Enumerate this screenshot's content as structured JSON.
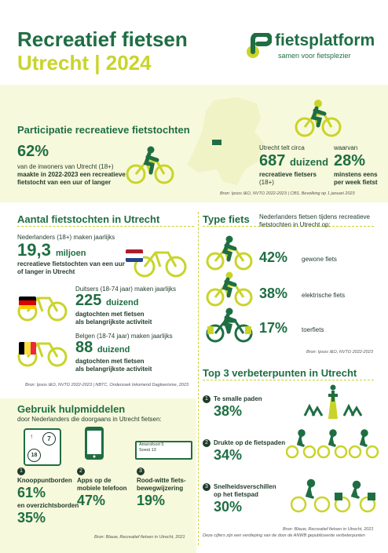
{
  "header": {
    "title_line1": "Recreatief fietsen",
    "title_line2": "Utrecht | 2024",
    "logo_name": "fietsplatform",
    "logo_tagline": "samen voor fietsplezier"
  },
  "participatie": {
    "title": "Participatie recreatieve fietstochten",
    "pct": "62%",
    "line1": "van de inwoners van Utrecht (18+)",
    "line2": "maakte in 2022-2023 een recreatieve",
    "line3": "fietstocht van een uur of langer",
    "count_intro": "Utrecht telt circa",
    "count_value": "687",
    "count_unit": "duizend",
    "count_label1": "recreatieve fietsers",
    "count_label2": "(18+)",
    "weekly_intro": "waarvan",
    "weekly_pct": "28%",
    "weekly_label1": "minstens eens",
    "weekly_label2": "per week fietst",
    "source": "Bron: Ipsos I&O, NVTO 2022-2023 | CBS, Bevolking op 1 januari 2023"
  },
  "aantal": {
    "title": "Aantal fietstochten in Utrecht",
    "nl_intro": "Nederlanders (18+) maken jaarlijks",
    "nl_value": "19,3",
    "nl_unit": "miljoen",
    "nl_label1": "recreatieve fietstochten van een uur",
    "nl_label2": "of langer in Utrecht",
    "de_intro": "Duitsers (18-74 jaar) maken jaarlijks",
    "de_value": "225",
    "de_unit": "duizend",
    "de_label1": "dagtochten met fietsen",
    "de_label2": "als belangrijkste activiteit",
    "be_intro": "Belgen (18-74 jaar) maken jaarlijks",
    "be_value": "88",
    "be_unit": "duizend",
    "be_label1": "dagtochten met fietsen",
    "be_label2": "als belangrijkste activiteit",
    "source": "Bron: Ipsos I&O, NVTO 2022-2023 | NBTC, Onderzoek Inkomend Dagtoerisme, 2023"
  },
  "type": {
    "title": "Type fiets",
    "intro1": "Nederlanders fietsen tijdens recreatieve",
    "intro2": "fietstochten in Utrecht op:",
    "items": [
      {
        "pct": "42%",
        "label": "gewone fiets"
      },
      {
        "pct": "38%",
        "label": "elektrische fiets"
      },
      {
        "pct": "17%",
        "label": "toerfiets"
      }
    ],
    "source": "Bron: Ipsos I&O, NVTO 2022-2023"
  },
  "hulp": {
    "title": "Gebruik hulpmiddelen",
    "intro": "door Nederlanders die doorgaans in Utrecht fietsen:",
    "sign_top": "7",
    "sign_bottom": "18",
    "road_sign_line1": "Amersfoort 5",
    "road_sign_line2": "Soest 13",
    "items": [
      {
        "num": "1",
        "label1": "Knooppuntborden",
        "pct": "61%",
        "extra": "en overzichtsborden",
        "extra_pct": "35%"
      },
      {
        "num": "2",
        "label1": "Apps op de",
        "label2": "mobiele telefoon",
        "pct": "47%"
      },
      {
        "num": "3",
        "label1": "Rood-witte fiets-",
        "label2": "bewegwijzering",
        "pct": "19%"
      }
    ],
    "source": "Bron: Blauw, Recreatief fietsen in Utrecht, 2021"
  },
  "top3": {
    "title": "Top 3 verbeterpunten in Utrecht",
    "items": [
      {
        "num": "1",
        "label1": "Te smalle paden",
        "pct": "38%"
      },
      {
        "num": "2",
        "label1": "Drukte op de fietspaden",
        "pct": "34%"
      },
      {
        "num": "3",
        "label1": "Snelheidsverschillen",
        "label2": "op het fietspad",
        "pct": "30%"
      }
    ],
    "source1": "Bron: Blauw, Recreatief fietsen in Utrecht, 2021",
    "source2": "Deze cijfers zijn een verdieping van de door de ANWB gepubliceerde verbeterpunten"
  },
  "colors": {
    "dark_green": "#1f6e43",
    "lime": "#c9d42a",
    "band": "#f7f9dc"
  }
}
